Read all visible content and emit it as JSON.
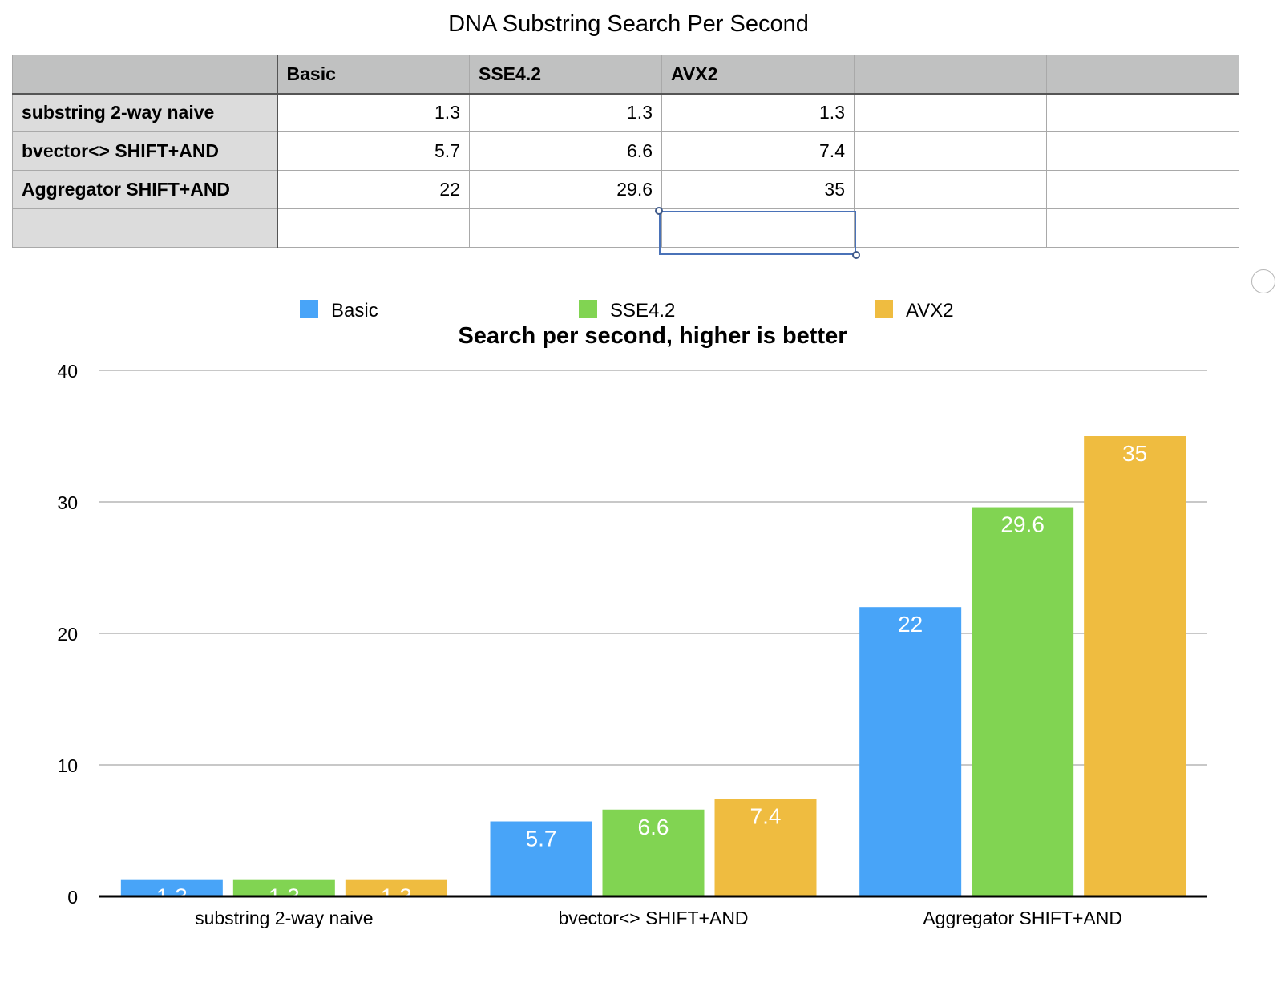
{
  "sheet": {
    "title": "DNA Substring Search Per Second",
    "header": [
      "",
      "Basic",
      "SSE4.2",
      "AVX2",
      "",
      ""
    ],
    "rows": [
      {
        "label": "substring 2-way naive",
        "cells": [
          "1.3",
          "1.3",
          "1.3",
          "",
          ""
        ]
      },
      {
        "label": "bvector<> SHIFT+AND",
        "cells": [
          "5.7",
          "6.6",
          "7.4",
          "",
          ""
        ]
      },
      {
        "label": "Aggregator SHIFT+AND",
        "cells": [
          "22",
          "29.6",
          "35",
          "",
          ""
        ]
      },
      {
        "label": "",
        "cells": [
          "",
          "",
          "",
          "",
          ""
        ]
      }
    ]
  },
  "chart_data": {
    "type": "bar",
    "title": "Search per second, higher is better",
    "categories": [
      "substring 2-way naive",
      "bvector<> SHIFT+AND",
      "Aggregator SHIFT+AND"
    ],
    "series": [
      {
        "name": "Basic",
        "values": [
          1.3,
          5.7,
          22
        ],
        "color": "#48a4f8"
      },
      {
        "name": "SSE4.2",
        "values": [
          1.3,
          6.6,
          29.6
        ],
        "color": "#81d452"
      },
      {
        "name": "AVX2",
        "values": [
          1.3,
          7.4,
          35
        ],
        "color": "#efbc40"
      }
    ],
    "ylim": [
      0,
      40
    ],
    "yticks": [
      0,
      10,
      20,
      30,
      40
    ],
    "xlabel": "",
    "ylabel": "",
    "grid": true,
    "legend": "top",
    "data_labels": true
  }
}
